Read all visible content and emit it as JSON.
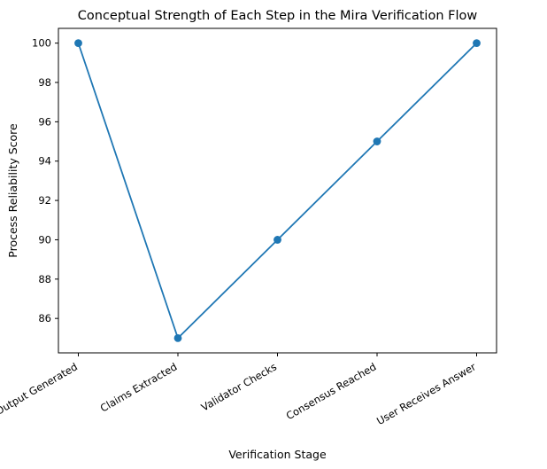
{
  "chart_data": {
    "type": "line",
    "title": "Conceptual Strength of Each Step in the Mira Verification Flow",
    "xlabel": "Verification Stage",
    "ylabel": "Process Reliability Score",
    "categories": [
      "AI Output Generated",
      "Claims Extracted",
      "Validator Checks",
      "Consensus Reached",
      "User Receives Answer"
    ],
    "series": [
      {
        "values": [
          100,
          85,
          90,
          95,
          100
        ],
        "color": "#1f77b4",
        "marker": "circle"
      }
    ],
    "ylim": [
      84.25,
      100.75
    ],
    "yticks": [
      86,
      88,
      90,
      92,
      94,
      96,
      98,
      100
    ],
    "grid": false,
    "legend": "none"
  }
}
